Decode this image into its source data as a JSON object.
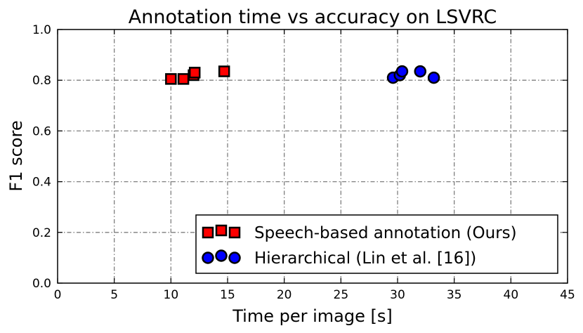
{
  "chart_data": {
    "type": "scatter",
    "title": "Annotation time vs accuracy on LSVRC",
    "xlabel": "Time per image [s]",
    "ylabel": "F1 score",
    "xlim": [
      0,
      45
    ],
    "ylim": [
      0.0,
      1.0
    ],
    "xticks": [
      0,
      5,
      10,
      15,
      20,
      25,
      30,
      35,
      40,
      45
    ],
    "yticks": [
      0.0,
      0.2,
      0.4,
      0.6,
      0.8,
      1.0
    ],
    "xtick_labels": [
      "0",
      "5",
      "10",
      "15",
      "20",
      "25",
      "30",
      "35",
      "40",
      "45"
    ],
    "ytick_labels": [
      "0.0",
      "0.2",
      "0.4",
      "0.6",
      "0.8",
      "1.0"
    ],
    "grid": true,
    "legend_position": "bottom-right",
    "series": [
      {
        "name": "Speech-based annotation (Ours)",
        "marker": "square",
        "color": "#ff0000",
        "points": [
          {
            "x": 10.0,
            "y": 0.805
          },
          {
            "x": 11.1,
            "y": 0.805
          },
          {
            "x": 12.0,
            "y": 0.82
          },
          {
            "x": 12.1,
            "y": 0.83
          },
          {
            "x": 14.7,
            "y": 0.835
          }
        ]
      },
      {
        "name": "Hierarchical (Lin et al. [16])",
        "marker": "circle",
        "color": "#0000ff",
        "points": [
          {
            "x": 29.6,
            "y": 0.81
          },
          {
            "x": 30.2,
            "y": 0.82
          },
          {
            "x": 30.4,
            "y": 0.835
          },
          {
            "x": 32.0,
            "y": 0.835
          },
          {
            "x": 33.2,
            "y": 0.81
          }
        ]
      }
    ]
  }
}
